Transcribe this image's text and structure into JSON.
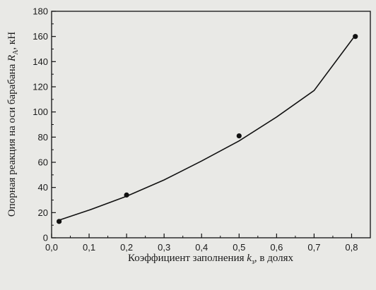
{
  "chart_data": {
    "type": "scatter",
    "title": "",
    "xlabel": {
      "text_before": "Коэффициент заполнения ",
      "var_main": "k",
      "var_sub": "з",
      "text_after": ", в долях"
    },
    "ylabel": {
      "text_before": "Опорная реакция на оси барабана ",
      "var_main": "R",
      "var_sub": "A",
      "text_after": ", кН"
    },
    "xlim": [
      0.0,
      0.85
    ],
    "ylim": [
      0,
      180
    ],
    "x_ticks": [
      0.0,
      0.1,
      0.2,
      0.3,
      0.4,
      0.5,
      0.6,
      0.7,
      0.8
    ],
    "x_tick_labels": [
      "0,0",
      "0,1",
      "0,2",
      "0,3",
      "0,4",
      "0,5",
      "0,6",
      "0,7",
      "0,8"
    ],
    "y_ticks": [
      0,
      20,
      40,
      60,
      80,
      100,
      120,
      140,
      160,
      180
    ],
    "y_tick_labels": [
      "0",
      "20",
      "40",
      "60",
      "80",
      "100",
      "120",
      "140",
      "160",
      "180"
    ],
    "grid": false,
    "series": [
      {
        "points": [
          {
            "x": 0.02,
            "y": 13
          },
          {
            "x": 0.2,
            "y": 34
          },
          {
            "x": 0.5,
            "y": 81
          },
          {
            "x": 0.81,
            "y": 160
          }
        ],
        "fit_curve": {
          "type": "quadratic",
          "x": [
            0.02,
            0.1,
            0.2,
            0.3,
            0.4,
            0.5,
            0.6,
            0.7,
            0.81
          ],
          "y": [
            14,
            22,
            33,
            46,
            61,
            77,
            96,
            117,
            161
          ]
        }
      }
    ],
    "colors": {
      "line": "#111111",
      "marker": "#111111",
      "axis": "#111111"
    }
  }
}
